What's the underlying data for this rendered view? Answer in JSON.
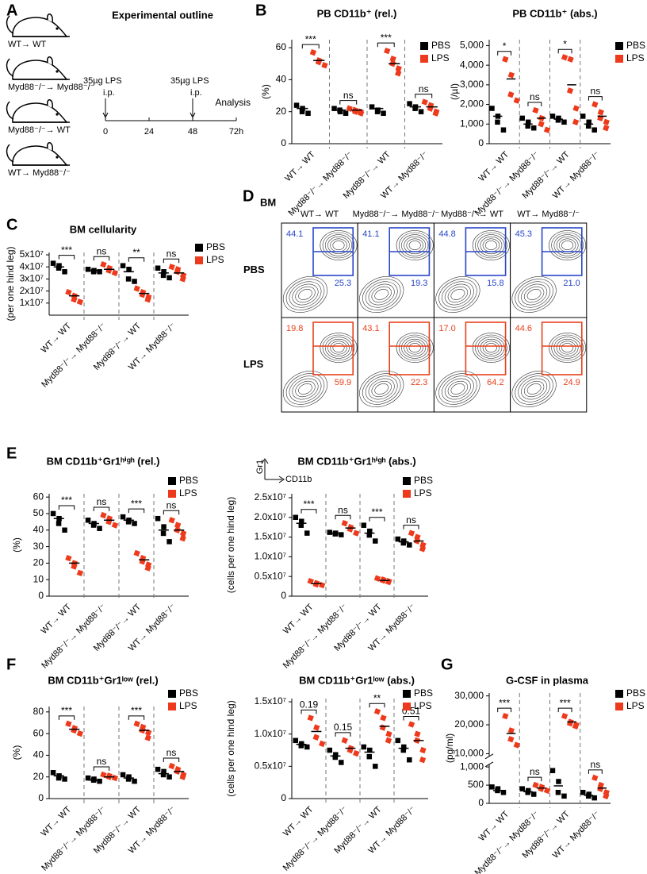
{
  "panel_labels": [
    "A",
    "B",
    "C",
    "D",
    "E",
    "F",
    "G"
  ],
  "outline": {
    "title": "Experimental outline",
    "mice": [
      "WT→ WT",
      "Myd88⁻/⁻→ Myd88⁻/⁻",
      "Myd88⁻/⁻→ WT",
      "WT→ Myd88⁻/⁻"
    ],
    "injections": [
      {
        "dose": "35µg LPS",
        "route": "i.p."
      },
      {
        "dose": "35µg LPS",
        "route": "i.p."
      }
    ],
    "timepoints": [
      "0",
      "24",
      "48",
      "72h"
    ],
    "analysis": "Analysis"
  },
  "flow": {
    "tissue": "BM",
    "columns": [
      "WT→ WT",
      "Myd88⁻/⁻→ Myd88⁻/⁻",
      "Myd88⁻/⁻→ WT",
      "WT→ Myd88⁻/⁻"
    ],
    "rows": [
      {
        "name": "PBS",
        "upper": [
          "44.1",
          "41.1",
          "44.8",
          "45.3"
        ],
        "lower": [
          "25.3",
          "19.3",
          "15.8",
          "21.0"
        ]
      },
      {
        "name": "LPS",
        "upper": [
          "19.8",
          "43.1",
          "17.0",
          "44.6"
        ],
        "lower": [
          "59.9",
          "22.3",
          "64.2",
          "24.9"
        ]
      }
    ],
    "y_axis": "Gr1",
    "x_axis": "CD11b"
  },
  "chart_data": [
    {
      "type": "dot",
      "title": "PB CD11b⁺ (rel.)",
      "ylabel": "(%)",
      "categories": [
        "WT→ WT",
        "Myd88⁻/⁻→ Myd88⁻/⁻",
        "Myd88⁻/⁻→ WT",
        "WT→ Myd88⁻/⁻"
      ],
      "series": [
        {
          "name": "PBS",
          "color": "#000000",
          "values": [
            [
              24,
              22,
              20,
              19
            ],
            [
              22,
              20,
              21,
              19
            ],
            [
              23,
              21,
              20,
              19
            ],
            [
              25,
              23,
              22,
              20
            ]
          ],
          "means": [
            22,
            21,
            22,
            23
          ]
        },
        {
          "name": "LPS",
          "color": "#ee3a1c",
          "values": [
            [
              57,
              52,
              51,
              49
            ],
            [
              22,
              20,
              21,
              19,
              20
            ],
            [
              58,
              53,
              50,
              47,
              44
            ],
            [
              26,
              24,
              22,
              20,
              19
            ]
          ],
          "means": [
            52,
            21,
            50,
            23
          ]
        }
      ],
      "annotations": [
        "***",
        "ns",
        "***",
        "ns"
      ],
      "ylim": [
        0,
        65
      ],
      "yticks": [
        0,
        20,
        40,
        60
      ]
    },
    {
      "type": "dot",
      "title": "PB CD11b⁺ (abs.)",
      "ylabel": "(/µl)",
      "categories": [
        "WT→ WT",
        "Myd88⁻/⁻→ Myd88⁻/⁻",
        "Myd88⁻/⁻→ WT",
        "WT→ Myd88⁻/⁻"
      ],
      "series": [
        {
          "name": "PBS",
          "color": "#000000",
          "values": [
            [
              1800,
              1400,
              1100,
              700
            ],
            [
              1300,
              1100,
              900,
              800
            ],
            [
              1400,
              1300,
              1200,
              1100
            ],
            [
              1400,
              1100,
              900,
              700
            ]
          ],
          "means": [
            1400,
            1000,
            1250,
            1000
          ]
        },
        {
          "name": "LPS",
          "color": "#ee3a1c",
          "values": [
            [
              4300,
              3500,
              2500,
              2200
            ],
            [
              1700,
              1300,
              1000,
              700
            ],
            [
              4400,
              4300,
              2700,
              1800,
              1100
            ],
            [
              2000,
              1600,
              1300,
              1100,
              800
            ]
          ],
          "means": [
            3300,
            1300,
            3000,
            1400
          ]
        }
      ],
      "annotations": [
        "*",
        "ns",
        "*",
        "ns"
      ],
      "ylim": [
        0,
        5300
      ],
      "yticks": [
        0,
        {
          "value": 1000,
          "label": "1,000"
        },
        {
          "value": 2000,
          "label": "2,000"
        },
        {
          "value": 3000,
          "label": "3,000"
        },
        {
          "value": 4000,
          "label": "4,000"
        },
        {
          "value": 5000,
          "label": "5,000"
        }
      ]
    },
    {
      "type": "dot",
      "title": "BM cellularity",
      "ylabel": "(per one hind leg)",
      "categories": [
        "WT→ WT",
        "Myd88⁻/⁻→ Myd88⁻/⁻",
        "Myd88⁻/⁻→ WT",
        "WT→ Myd88⁻/⁻"
      ],
      "series": [
        {
          "name": "PBS",
          "color": "#000000",
          "values": [
            [
              43000000,
              41000000,
              39000000,
              36000000
            ],
            [
              38000000,
              37000000,
              36000000,
              36000000
            ],
            [
              41000000,
              38000000,
              30000000,
              28000000
            ],
            [
              39000000,
              36000000,
              33000000,
              31000000
            ]
          ],
          "means": [
            40000000,
            37000000,
            36000000,
            35000000
          ]
        },
        {
          "name": "LPS",
          "color": "#ee3a1c",
          "values": [
            [
              19000000,
              16000000,
              13000000,
              11000000
            ],
            [
              42000000,
              39000000,
              37000000,
              35000000
            ],
            [
              22000000,
              19000000,
              17000000,
              15000000,
              13000000
            ],
            [
              40000000,
              38000000,
              36000000,
              33000000,
              30000000
            ]
          ],
          "means": [
            16000000,
            38000000,
            18000000,
            35000000
          ]
        }
      ],
      "annotations": [
        "***",
        "ns",
        "**",
        "ns"
      ],
      "ylim": [
        0,
        52000000
      ],
      "yticks": [
        {
          "value": 10000000,
          "label": "1x10⁷"
        },
        {
          "value": 20000000,
          "label": "2x10⁷"
        },
        {
          "value": 30000000,
          "label": "3x10⁷"
        },
        {
          "value": 40000000,
          "label": "4x10⁷"
        },
        {
          "value": 50000000,
          "label": "5x10⁷"
        }
      ]
    },
    {
      "type": "dot",
      "title": "BM CD11b⁺Gr1ʰⁱᵍʰ (rel.)",
      "ylabel": "(%)",
      "categories": [
        "WT→ WT",
        "Myd88⁻/⁻→ Myd88⁻/⁻",
        "Myd88⁻/⁻→ WT",
        "WT→ Myd88⁻/⁻"
      ],
      "series": [
        {
          "name": "PBS",
          "color": "#000000",
          "values": [
            [
              50,
              47,
              44,
              40
            ],
            [
              46,
              44,
              43,
              41
            ],
            [
              48,
              46,
              45,
              44
            ],
            [
              47,
              42,
              38,
              33
            ]
          ],
          "means": [
            47,
            44,
            46,
            40
          ]
        },
        {
          "name": "LPS",
          "color": "#ee3a1c",
          "values": [
            [
              23,
              20,
              18,
              14
            ],
            [
              49,
              47,
              45,
              43
            ],
            [
              26,
              23,
              21,
              19,
              17
            ],
            [
              46,
              43,
              40,
              38,
              35
            ]
          ],
          "means": [
            20,
            46,
            22,
            40
          ]
        }
      ],
      "annotations": [
        "***",
        "ns",
        "***",
        "ns"
      ],
      "ylim": [
        0,
        62
      ],
      "yticks": [
        0,
        10,
        20,
        30,
        40,
        50,
        60
      ]
    },
    {
      "type": "dot",
      "title": "BM CD11b⁺Gr1ʰⁱᵍʰ (abs.)",
      "ylabel": "(cells per one hind leg)",
      "categories": [
        "WT→ WT",
        "Myd88⁻/⁻→ Myd88⁻/⁻",
        "Myd88⁻/⁻→ WT",
        "WT→ Myd88⁻/⁻"
      ],
      "series": [
        {
          "name": "PBS",
          "color": "#000000",
          "values": [
            [
              20000000,
              19000000,
              18000000,
              16000000
            ],
            [
              16200000,
              16000000,
              15800000,
              15600000
            ],
            [
              18000000,
              16500000,
              15500000,
              14000000
            ],
            [
              14500000,
              14000000,
              13500000,
              13000000
            ]
          ],
          "means": [
            18500000,
            15900000,
            16000000,
            13800000
          ]
        },
        {
          "name": "LPS",
          "color": "#ee3a1c",
          "values": [
            [
              3800000,
              3300000,
              3000000,
              2800000
            ],
            [
              18500000,
              17500000,
              17000000,
              16000000
            ],
            [
              4500000,
              4200000,
              4000000,
              3800000,
              3600000
            ],
            [
              16000000,
              15000000,
              14000000,
              13000000,
              12000000
            ]
          ],
          "means": [
            3200000,
            17300000,
            4000000,
            14000000
          ]
        }
      ],
      "annotations": [
        "***",
        "ns",
        "***",
        "ns"
      ],
      "ylim": [
        0,
        26000000
      ],
      "yticks": [
        0,
        {
          "value": 5000000,
          "label": "0.5x10⁷"
        },
        {
          "value": 10000000,
          "label": "1.0x10⁷"
        },
        {
          "value": 15000000,
          "label": "1.5x10⁷"
        },
        {
          "value": 20000000,
          "label": "2.0x10⁷"
        },
        {
          "value": 25000000,
          "label": "2.5x10⁷"
        }
      ]
    },
    {
      "type": "dot",
      "title": "BM CD11b⁺Gr1ˡᵒʷ (rel.)",
      "ylabel": "(%)",
      "categories": [
        "WT→ WT",
        "Myd88⁻/⁻→ Myd88⁻/⁻",
        "Myd88⁻/⁻→ WT",
        "WT→ Myd88⁻/⁻"
      ],
      "series": [
        {
          "name": "PBS",
          "color": "#000000",
          "values": [
            [
              24,
              21,
              19,
              18
            ],
            [
              19,
              18,
              17,
              16
            ],
            [
              22,
              20,
              18,
              16
            ],
            [
              27,
              25,
              22,
              20
            ]
          ],
          "means": [
            21,
            17,
            19,
            23
          ]
        },
        {
          "name": "LPS",
          "color": "#ee3a1c",
          "values": [
            [
              69,
              65,
              63,
              60
            ],
            [
              22,
              21,
              20,
              19
            ],
            [
              69,
              66,
              63,
              61,
              56
            ],
            [
              30,
              27,
              25,
              22,
              20
            ]
          ],
          "means": [
            64,
            20,
            63,
            25
          ]
        }
      ],
      "annotations": [
        "***",
        "ns",
        "***",
        "ns"
      ],
      "ylim": [
        0,
        85
      ],
      "yticks": [
        0,
        20,
        40,
        60,
        80
      ]
    },
    {
      "type": "dot",
      "title": "BM CD11b⁺Gr1ˡᵒʷ (abs.)",
      "ylabel": "(cells per one hind leg)",
      "categories": [
        "WT→ WT",
        "Myd88⁻/⁻→ Myd88⁻/⁻",
        "Myd88⁻/⁻→ WT",
        "WT→ Myd88⁻/⁻"
      ],
      "series": [
        {
          "name": "PBS",
          "color": "#000000",
          "values": [
            [
              9000000,
              8500000,
              8200000,
              8000000
            ],
            [
              7500000,
              6800000,
              6400000,
              5600000
            ],
            [
              8000000,
              7500000,
              6500000,
              5000000
            ],
            [
              9000000,
              8000000,
              7500000,
              6000000
            ]
          ],
          "means": [
            8400000,
            6600000,
            7200000,
            7800000
          ]
        },
        {
          "name": "LPS",
          "color": "#ee3a1c",
          "values": [
            [
              12500000,
              11000000,
              9500000,
              8500000
            ],
            [
              9000000,
              7800000,
              7500000,
              7000000
            ],
            [
              13500000,
              12500000,
              11000000,
              10000000,
              9000000
            ],
            [
              11500000,
              10000000,
              9000000,
              7500000,
              6000000
            ]
          ],
          "means": [
            10400000,
            7800000,
            11200000,
            9000000
          ]
        }
      ],
      "annotations": [
        "0.19",
        "0.15",
        "**",
        "0.51"
      ],
      "ylim": [
        0,
        15500000
      ],
      "yticks": [
        0,
        {
          "value": 5000000,
          "label": "0.5x10⁷"
        },
        {
          "value": 10000000,
          "label": "1.0x10⁷"
        },
        {
          "value": 15000000,
          "label": "1.5x10⁷"
        }
      ]
    },
    {
      "type": "dot",
      "title": "G-CSF in plasma",
      "ylabel": "(pg/ml)",
      "categories": [
        "WT→ WT",
        "Myd88⁻/⁻→ Myd88⁻/⁻",
        "Myd88⁻/⁻→ WT",
        "WT→ Myd88⁻/⁻"
      ],
      "series": [
        {
          "name": "PBS",
          "color": "#000000",
          "values": [
            [
              450,
              400,
              350,
              300
            ],
            [
              400,
              350,
              300,
              250
            ],
            [
              900,
              600,
              300,
              200
            ],
            [
              300,
              250,
              200,
              150
            ]
          ],
          "means": [
            350,
            320,
            480,
            220
          ]
        },
        {
          "name": "LPS",
          "color": "#ee3a1c",
          "values": [
            [
              23000,
              18000,
              15000,
              13000
            ],
            [
              500,
              450,
              400,
              350
            ],
            [
              23000,
              21000,
              20500,
              20000,
              19500
            ],
            [
              700,
              500,
              400,
              300,
              200
            ]
          ],
          "means": [
            17000,
            420,
            21000,
            420
          ]
        }
      ],
      "annotations": [
        "***",
        "ns",
        "***",
        "ns"
      ],
      "ylim": [
        0,
        31000
      ],
      "ybreak": [
        1000,
        10000
      ],
      "yticks": [
        0,
        500,
        {
          "value": 1000,
          "label": "1,000"
        },
        {
          "value": 10000,
          "label": "10,000"
        },
        {
          "value": 20000,
          "label": "20,000"
        },
        {
          "value": 30000,
          "label": "30,000"
        }
      ]
    }
  ]
}
